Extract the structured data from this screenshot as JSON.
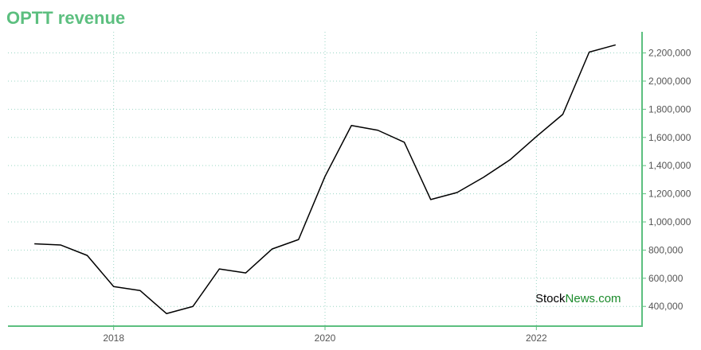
{
  "chart_data": {
    "type": "line",
    "title": "OPTT revenue",
    "x": [
      2017.25,
      2017.5,
      2017.75,
      2018.0,
      2018.25,
      2018.5,
      2018.75,
      2019.0,
      2019.25,
      2019.5,
      2019.75,
      2020.0,
      2020.25,
      2020.5,
      2020.75,
      2021.0,
      2021.25,
      2021.5,
      2021.75,
      2022.0,
      2022.25,
      2022.5,
      2022.75
    ],
    "series": [
      {
        "name": "OPTT revenue",
        "color": "#000000",
        "values": [
          845000,
          836000,
          762000,
          541000,
          513000,
          349000,
          400000,
          666000,
          638000,
          808000,
          875000,
          1323000,
          1685000,
          1651000,
          1566000,
          1159000,
          1209000,
          1317000,
          1441000,
          1606000,
          1764000,
          2206000,
          2257000
        ]
      }
    ],
    "xlim": [
      2017,
      2023
    ],
    "xticks": [
      2018,
      2020,
      2022
    ],
    "ylim": [
      260000,
      2350000
    ],
    "yticks": [
      {
        "value": 400000,
        "label": "400,000"
      },
      {
        "value": 600000,
        "label": "600,000"
      },
      {
        "value": 800000,
        "label": "800,000"
      },
      {
        "value": 1000000,
        "label": "1,000,000"
      },
      {
        "value": 1200000,
        "label": "1,200,000"
      },
      {
        "value": 1400000,
        "label": "1,400,000"
      },
      {
        "value": 1600000,
        "label": "1,600,000"
      },
      {
        "value": 1800000,
        "label": "1,800,000"
      },
      {
        "value": 2000000,
        "label": "2,000,000"
      },
      {
        "value": 2200000,
        "label": "2,200,000"
      }
    ],
    "grid": true,
    "watermark": {
      "brand": "Stock",
      "suffix": "News.com"
    }
  }
}
